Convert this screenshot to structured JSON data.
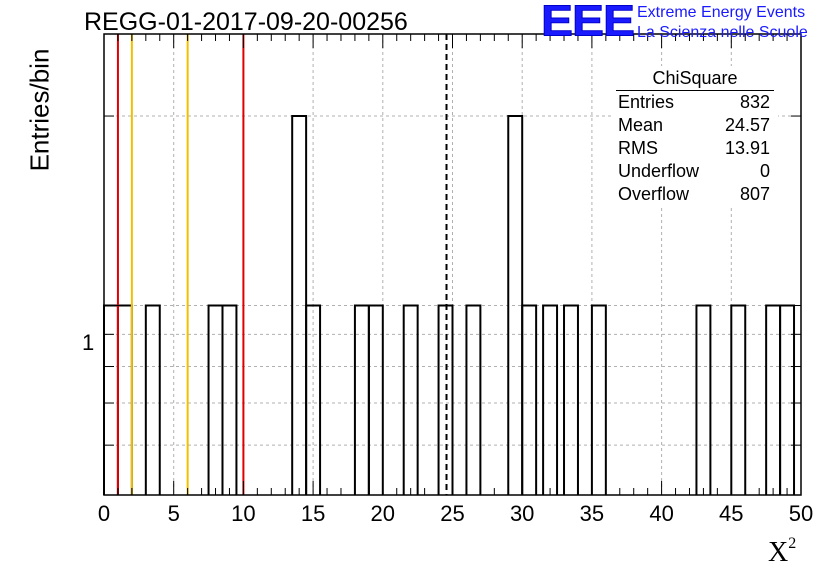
{
  "header": {
    "title": "REGG-01-2017-09-20-00256",
    "logo_mark": "EEE",
    "logo_line1": "Extreme Energy Events",
    "logo_line2": "La Scienza nelle Scuole",
    "logo_color": "#1a1aff"
  },
  "chart_data": {
    "type": "histogram",
    "xlabel": "X",
    "xlabel_sup": "2",
    "ylabel": "Entries/bin",
    "xlim": [
      0,
      50
    ],
    "ylim_log": [
      0.5,
      2.7
    ],
    "y_scale": "log",
    "grid": true,
    "bin_width": 1,
    "x_ticks": [
      0,
      5,
      10,
      15,
      20,
      25,
      30,
      35,
      40,
      45,
      50
    ],
    "y_ticks": [
      "1"
    ],
    "bins": [
      {
        "x": 0,
        "count": 1
      },
      {
        "x": 1,
        "count": 1
      },
      {
        "x": 3,
        "count": 1
      },
      {
        "x": 7.5,
        "count": 1
      },
      {
        "x": 8.5,
        "count": 1
      },
      {
        "x": 13.5,
        "count": 2
      },
      {
        "x": 14.5,
        "count": 1
      },
      {
        "x": 18,
        "count": 1
      },
      {
        "x": 19,
        "count": 1
      },
      {
        "x": 21.5,
        "count": 1
      },
      {
        "x": 24,
        "count": 1
      },
      {
        "x": 26,
        "count": 1
      },
      {
        "x": 29,
        "count": 2
      },
      {
        "x": 30,
        "count": 1
      },
      {
        "x": 31.5,
        "count": 1
      },
      {
        "x": 33,
        "count": 1
      },
      {
        "x": 35,
        "count": 1
      },
      {
        "x": 42.5,
        "count": 1
      },
      {
        "x": 45,
        "count": 1
      },
      {
        "x": 47.5,
        "count": 1
      },
      {
        "x": 48.5,
        "count": 1
      }
    ],
    "vertical_lines": [
      {
        "x": 1,
        "color": "#e00000"
      },
      {
        "x": 2,
        "color": "#f0c000"
      },
      {
        "x": 6,
        "color": "#f0c000"
      },
      {
        "x": 10,
        "color": "#e00000"
      },
      {
        "x": 24.57,
        "color": "#000000",
        "style": "dashed"
      }
    ],
    "stats": {
      "name": "ChiSquare",
      "rows": [
        {
          "label": "Entries",
          "value": "832"
        },
        {
          "label": "Mean",
          "value": "24.57"
        },
        {
          "label": "RMS",
          "value": "13.91"
        },
        {
          "label": "Underflow",
          "value": "0"
        },
        {
          "label": "Overflow",
          "value": "807"
        }
      ]
    }
  }
}
